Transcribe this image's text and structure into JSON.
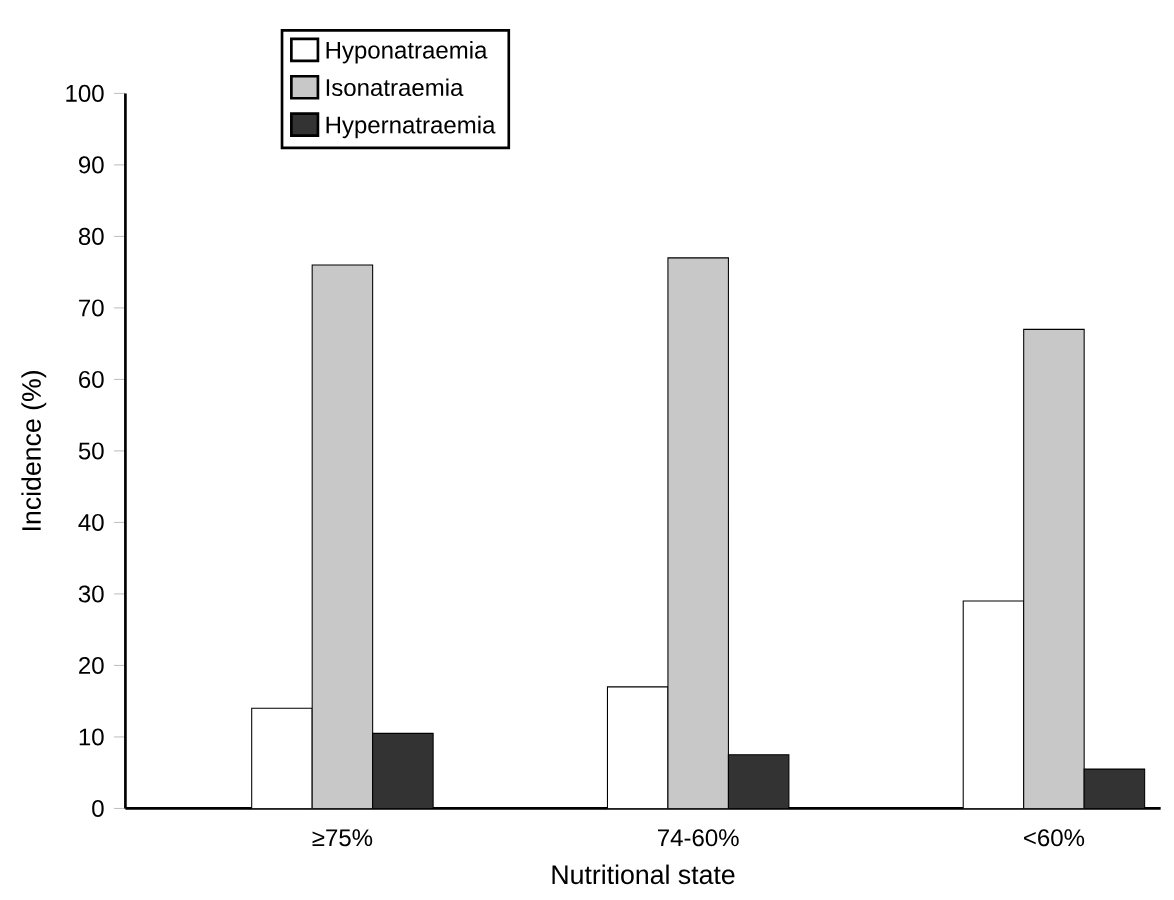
{
  "chart_data": {
    "type": "bar",
    "xlabel": "Nutritional state",
    "ylabel": "Incidence (%)",
    "categories": [
      "≥75%",
      "74-60%",
      "<60%"
    ],
    "series": [
      {
        "name": "Hyponatraemia",
        "color": "#ffffff",
        "values": [
          14,
          17,
          29
        ]
      },
      {
        "name": "Isonatraemia",
        "color": "#c8c8c8",
        "values": [
          76,
          77,
          67
        ]
      },
      {
        "name": "Hypernatraemia",
        "color": "#333333",
        "values": [
          10.5,
          7.5,
          5.5
        ]
      }
    ],
    "ylim": [
      0,
      100
    ],
    "yticks": [
      0,
      10,
      20,
      30,
      40,
      50,
      60,
      70,
      80,
      90,
      100
    ],
    "legend": "top left",
    "grid": false
  }
}
